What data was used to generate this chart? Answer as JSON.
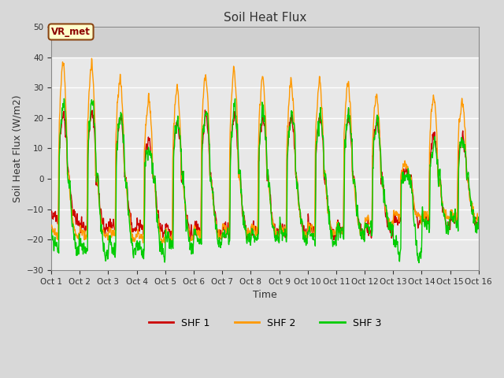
{
  "title": "Soil Heat Flux",
  "xlabel": "Time",
  "ylabel": "Soil Heat Flux (W/m2)",
  "ylim": [
    -30,
    50
  ],
  "yticks": [
    -30,
    -20,
    -10,
    0,
    10,
    20,
    30,
    40,
    50
  ],
  "xlim": [
    0,
    15
  ],
  "xtick_labels": [
    "Oct 1",
    "Oct 2",
    "Oct 3",
    "Oct 4",
    "Oct 5",
    "Oct 6",
    "Oct 7",
    "Oct 8",
    "Oct 9",
    "Oct 10",
    "Oct 11",
    "Oct 12",
    "Oct 13",
    "Oct 14",
    "Oct 15",
    "Oct 16"
  ],
  "shf1_color": "#cc0000",
  "shf2_color": "#ff9900",
  "shf3_color": "#00cc00",
  "linewidth": 1.0,
  "legend_labels": [
    "SHF 1",
    "SHF 2",
    "SHF 3"
  ],
  "annotation_text": "VR_met",
  "bg_color": "#d8d8d8",
  "plot_bg_color": "#e8e8e8",
  "plot_top_bg": "#d0d0d0",
  "grid_color": "#ffffff",
  "n_days": 15,
  "n_points_per_day": 96,
  "day_peaks_shf2": [
    39,
    40,
    34,
    27,
    31,
    35,
    37,
    35,
    33,
    33,
    33,
    29,
    5,
    28,
    27
  ],
  "day_peaks_shf1": [
    22,
    23,
    21,
    13,
    19,
    21,
    22,
    21,
    21,
    21,
    21,
    20,
    2,
    14,
    14
  ],
  "day_peaks_shf3": [
    26,
    26,
    22,
    10,
    19,
    23,
    25,
    23,
    23,
    22,
    22,
    19,
    1,
    12,
    13
  ],
  "night_min_shf1": [
    -14,
    -17,
    -17,
    -17,
    -18,
    -18,
    -18,
    -18,
    -18,
    -18,
    -18,
    -18,
    -14,
    -15,
    -14
  ],
  "night_min_shf2": [
    -19,
    -19,
    -19,
    -20,
    -20,
    -19,
    -18,
    -18,
    -18,
    -18,
    -18,
    -15,
    -13,
    -13,
    -13
  ],
  "night_min_shf3": [
    -23,
    -25,
    -24,
    -25,
    -22,
    -21,
    -20,
    -20,
    -20,
    -20,
    -19,
    -17,
    -25,
    -16,
    -15
  ]
}
